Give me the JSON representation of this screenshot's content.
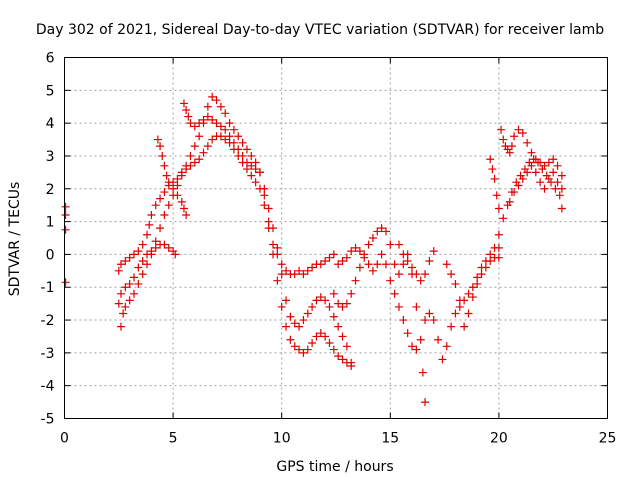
{
  "chart_data": {
    "type": "scatter",
    "title": "Day 302 of 2021, Sidereal Day-to-day VTEC variation (SDTVAR) for receiver lamb",
    "xlabel": "GPS time / hours",
    "ylabel": "SDTVAR / TECUs",
    "xlim": [
      0,
      25
    ],
    "ylim": [
      -5,
      6
    ],
    "xticks": [
      "0",
      "5",
      "10",
      "15",
      "20",
      "25"
    ],
    "yticks": [
      "-5",
      "-4",
      "-3",
      "-2",
      "-1",
      "0",
      "1",
      "2",
      "3",
      "4",
      "5",
      "6"
    ],
    "grid": true,
    "marker": "plus",
    "color": "#e00000",
    "series": [
      {
        "points": [
          [
            0.05,
            1.45
          ],
          [
            0.05,
            1.2
          ],
          [
            0.05,
            0.75
          ],
          [
            0.05,
            -0.85
          ],
          [
            2.5,
            -0.5
          ],
          [
            2.6,
            -0.3
          ],
          [
            2.8,
            -0.2
          ],
          [
            3.0,
            -0.1
          ],
          [
            3.2,
            0.0
          ],
          [
            3.4,
            0.1
          ],
          [
            3.6,
            0.3
          ],
          [
            3.8,
            0.6
          ],
          [
            3.9,
            0.9
          ],
          [
            4.0,
            1.2
          ],
          [
            4.2,
            1.5
          ],
          [
            4.4,
            1.7
          ],
          [
            4.6,
            1.9
          ],
          [
            4.8,
            2.1
          ],
          [
            5.0,
            2.2
          ],
          [
            5.2,
            2.3
          ],
          [
            5.4,
            2.5
          ],
          [
            5.6,
            2.6
          ],
          [
            5.8,
            2.7
          ],
          [
            6.0,
            2.8
          ],
          [
            6.2,
            2.9
          ],
          [
            6.4,
            3.1
          ],
          [
            6.6,
            3.3
          ],
          [
            6.8,
            3.5
          ],
          [
            7.0,
            3.6
          ],
          [
            7.2,
            3.6
          ],
          [
            7.4,
            3.5
          ],
          [
            7.6,
            3.4
          ],
          [
            7.8,
            3.2
          ],
          [
            8.0,
            3.0
          ],
          [
            8.2,
            2.8
          ],
          [
            8.4,
            2.6
          ],
          [
            8.6,
            2.4
          ],
          [
            8.8,
            2.2
          ],
          [
            9.0,
            2.0
          ],
          [
            9.2,
            1.5
          ],
          [
            9.4,
            0.8
          ],
          [
            9.6,
            0.0
          ],
          [
            9.8,
            -0.8
          ],
          [
            10.0,
            -1.6
          ],
          [
            10.2,
            -2.2
          ],
          [
            10.4,
            -2.6
          ],
          [
            10.6,
            -2.8
          ],
          [
            10.8,
            -2.9
          ],
          [
            11.0,
            -3.0
          ],
          [
            11.2,
            -2.9
          ],
          [
            11.4,
            -2.7
          ],
          [
            11.6,
            -2.5
          ],
          [
            11.8,
            -2.4
          ],
          [
            12.0,
            -2.5
          ],
          [
            12.2,
            -2.7
          ],
          [
            12.4,
            -2.9
          ],
          [
            12.6,
            -3.1
          ],
          [
            12.8,
            -3.2
          ],
          [
            13.0,
            -3.3
          ],
          [
            13.2,
            -3.4
          ]
        ]
      },
      {
        "points": [
          [
            2.5,
            -1.5
          ],
          [
            2.6,
            -1.2
          ],
          [
            2.8,
            -1.0
          ],
          [
            3.0,
            -0.9
          ],
          [
            3.2,
            -0.7
          ],
          [
            3.4,
            -0.4
          ],
          [
            3.6,
            -0.2
          ],
          [
            3.8,
            0.0
          ],
          [
            4.0,
            0.1
          ],
          [
            4.2,
            0.2
          ],
          [
            4.4,
            0.3
          ],
          [
            4.6,
            0.3
          ],
          [
            4.8,
            0.2
          ],
          [
            5.0,
            0.1
          ],
          [
            5.1,
            0.0
          ],
          [
            4.3,
            3.5
          ],
          [
            4.4,
            3.3
          ],
          [
            4.5,
            3.0
          ],
          [
            4.6,
            2.7
          ],
          [
            4.7,
            2.4
          ],
          [
            4.8,
            2.2
          ],
          [
            5.0,
            2.0
          ],
          [
            5.2,
            1.8
          ],
          [
            5.4,
            1.6
          ],
          [
            5.5,
            1.4
          ],
          [
            5.6,
            1.2
          ],
          [
            5.5,
            4.6
          ],
          [
            5.6,
            4.4
          ],
          [
            5.7,
            4.2
          ],
          [
            5.8,
            4.0
          ],
          [
            6.0,
            3.9
          ],
          [
            6.2,
            4.0
          ],
          [
            6.4,
            4.1
          ],
          [
            6.6,
            4.2
          ],
          [
            6.8,
            4.1
          ],
          [
            7.0,
            4.0
          ],
          [
            7.2,
            3.9
          ],
          [
            7.4,
            3.8
          ],
          [
            7.6,
            3.6
          ],
          [
            7.8,
            3.4
          ],
          [
            8.0,
            3.2
          ],
          [
            8.2,
            3.0
          ],
          [
            8.4,
            2.8
          ],
          [
            8.6,
            2.7
          ],
          [
            8.8,
            2.6
          ],
          [
            9.0,
            2.5
          ],
          [
            9.2,
            1.8
          ],
          [
            9.4,
            1.0
          ],
          [
            9.6,
            0.3
          ],
          [
            9.8,
            0.0
          ],
          [
            10.0,
            -0.3
          ],
          [
            10.2,
            -0.5
          ],
          [
            10.4,
            -0.6
          ],
          [
            10.6,
            -0.6
          ],
          [
            10.8,
            -0.5
          ],
          [
            11.0,
            -0.6
          ],
          [
            11.2,
            -0.5
          ],
          [
            11.4,
            -0.4
          ],
          [
            11.6,
            -0.3
          ],
          [
            11.8,
            -0.3
          ],
          [
            12.0,
            -0.2
          ],
          [
            12.2,
            -0.1
          ],
          [
            12.4,
            0.0
          ]
        ]
      },
      {
        "points": [
          [
            2.6,
            -2.2
          ],
          [
            2.7,
            -1.8
          ],
          [
            2.8,
            -1.6
          ],
          [
            3.0,
            -1.4
          ],
          [
            3.2,
            -1.2
          ],
          [
            3.4,
            -0.9
          ],
          [
            3.6,
            -0.6
          ],
          [
            3.8,
            -0.3
          ],
          [
            4.0,
            0.0
          ],
          [
            4.2,
            0.4
          ],
          [
            4.4,
            0.8
          ],
          [
            4.6,
            1.2
          ],
          [
            4.8,
            1.5
          ],
          [
            5.0,
            1.8
          ],
          [
            5.2,
            2.1
          ],
          [
            5.4,
            2.4
          ],
          [
            5.6,
            2.7
          ],
          [
            5.8,
            3.0
          ],
          [
            6.0,
            3.3
          ],
          [
            6.2,
            3.6
          ],
          [
            6.4,
            4.0
          ],
          [
            6.6,
            4.5
          ],
          [
            6.8,
            4.8
          ],
          [
            7.0,
            4.7
          ],
          [
            7.2,
            4.5
          ],
          [
            7.4,
            4.3
          ],
          [
            7.6,
            4.0
          ],
          [
            7.8,
            3.8
          ],
          [
            8.0,
            3.6
          ],
          [
            8.2,
            3.4
          ],
          [
            8.4,
            3.2
          ],
          [
            8.6,
            3.0
          ],
          [
            8.8,
            2.8
          ],
          [
            9.0,
            2.5
          ],
          [
            9.2,
            2.0
          ],
          [
            9.4,
            1.4
          ],
          [
            9.6,
            0.8
          ],
          [
            9.8,
            0.2
          ],
          [
            10.0,
            -0.6
          ],
          [
            10.2,
            -1.4
          ],
          [
            10.4,
            -1.9
          ],
          [
            10.6,
            -2.1
          ],
          [
            10.8,
            -2.2
          ],
          [
            11.0,
            -2.0
          ],
          [
            11.2,
            -1.8
          ],
          [
            11.4,
            -1.6
          ],
          [
            11.6,
            -1.4
          ],
          [
            11.8,
            -1.3
          ],
          [
            12.0,
            -1.4
          ],
          [
            12.2,
            -1.6
          ],
          [
            12.4,
            -1.9
          ],
          [
            12.6,
            -2.2
          ],
          [
            12.8,
            -2.5
          ],
          [
            13.0,
            -2.8
          ],
          [
            13.2,
            -3.3
          ]
        ]
      },
      {
        "points": [
          [
            12.4,
            -1.2
          ],
          [
            12.6,
            -1.5
          ],
          [
            12.8,
            -1.6
          ],
          [
            13.0,
            -1.5
          ],
          [
            13.2,
            -1.2
          ],
          [
            13.4,
            -0.8
          ],
          [
            13.6,
            -0.4
          ],
          [
            13.8,
            0.0
          ],
          [
            14.0,
            0.3
          ],
          [
            14.2,
            0.5
          ],
          [
            14.4,
            0.7
          ],
          [
            14.6,
            0.8
          ],
          [
            14.8,
            0.7
          ],
          [
            15.0,
            0.3
          ],
          [
            15.2,
            -0.3
          ],
          [
            15.4,
            -0.6
          ],
          [
            15.6,
            -0.3
          ],
          [
            15.8,
            0.0
          ],
          [
            16.0,
            -0.6
          ],
          [
            16.2,
            -1.6
          ],
          [
            16.4,
            -2.6
          ],
          [
            16.5,
            -3.6
          ],
          [
            16.6,
            -4.5
          ],
          [
            12.6,
            -0.3
          ],
          [
            12.8,
            -0.2
          ],
          [
            13.0,
            -0.1
          ],
          [
            13.2,
            0.1
          ],
          [
            13.4,
            0.2
          ],
          [
            13.6,
            0.1
          ],
          [
            13.8,
            -0.1
          ],
          [
            14.0,
            -0.3
          ],
          [
            14.2,
            -0.5
          ],
          [
            14.4,
            -0.3
          ],
          [
            14.6,
            0.0
          ],
          [
            14.8,
            -0.3
          ],
          [
            15.0,
            -0.8
          ],
          [
            15.2,
            -1.2
          ],
          [
            15.4,
            -1.6
          ],
          [
            15.6,
            -2.0
          ],
          [
            15.8,
            -2.4
          ],
          [
            16.0,
            -2.8
          ],
          [
            16.2,
            -2.9
          ],
          [
            15.4,
            0.3
          ],
          [
            15.6,
            0.0
          ],
          [
            15.8,
            -0.2
          ],
          [
            16.0,
            -0.4
          ],
          [
            16.2,
            -0.6
          ],
          [
            16.4,
            -0.8
          ],
          [
            16.6,
            -0.6
          ],
          [
            16.8,
            -0.2
          ],
          [
            17.0,
            0.1
          ],
          [
            16.6,
            -2.0
          ],
          [
            16.8,
            -1.8
          ],
          [
            17.0,
            -2.0
          ],
          [
            17.2,
            -2.6
          ],
          [
            17.4,
            -3.2
          ],
          [
            17.6,
            -2.8
          ],
          [
            17.8,
            -2.2
          ],
          [
            18.0,
            -1.8
          ],
          [
            18.2,
            -1.6
          ],
          [
            18.4,
            -1.4
          ],
          [
            18.6,
            -1.2
          ],
          [
            18.8,
            -1.0
          ],
          [
            19.0,
            -0.7
          ],
          [
            19.2,
            -0.4
          ],
          [
            19.4,
            -0.2
          ],
          [
            19.6,
            0.0
          ],
          [
            19.8,
            0.2
          ],
          [
            17.6,
            -0.3
          ],
          [
            17.8,
            -0.6
          ],
          [
            18.0,
            -0.9
          ],
          [
            18.2,
            -1.4
          ],
          [
            18.4,
            -2.2
          ],
          [
            18.6,
            -1.8
          ],
          [
            18.8,
            -1.3
          ],
          [
            19.0,
            -0.9
          ],
          [
            19.2,
            -0.6
          ],
          [
            19.4,
            -0.4
          ],
          [
            19.6,
            -0.2
          ],
          [
            19.8,
            -0.1
          ],
          [
            20.0,
            -0.1
          ]
        ]
      },
      {
        "points": [
          [
            19.6,
            2.9
          ],
          [
            19.7,
            2.6
          ],
          [
            19.8,
            2.3
          ],
          [
            19.9,
            1.8
          ],
          [
            20.0,
            1.4
          ],
          [
            20.0,
            0.6
          ],
          [
            20.0,
            0.2
          ],
          [
            20.2,
            1.1
          ],
          [
            20.4,
            1.5
          ],
          [
            20.6,
            1.9
          ],
          [
            20.8,
            2.2
          ],
          [
            21.0,
            2.4
          ],
          [
            21.2,
            2.6
          ],
          [
            21.4,
            2.8
          ],
          [
            21.6,
            2.9
          ],
          [
            21.8,
            2.8
          ],
          [
            22.0,
            2.6
          ],
          [
            22.2,
            2.4
          ],
          [
            22.4,
            2.2
          ],
          [
            22.6,
            2.0
          ],
          [
            22.8,
            1.8
          ],
          [
            22.9,
            1.4
          ],
          [
            20.1,
            3.8
          ],
          [
            20.2,
            3.5
          ],
          [
            20.3,
            3.3
          ],
          [
            20.4,
            3.2
          ],
          [
            20.5,
            3.1
          ],
          [
            20.6,
            3.3
          ],
          [
            20.7,
            3.6
          ],
          [
            20.9,
            3.8
          ],
          [
            21.1,
            3.7
          ],
          [
            21.3,
            3.4
          ],
          [
            21.5,
            3.1
          ],
          [
            21.7,
            2.9
          ],
          [
            21.9,
            2.8
          ],
          [
            22.1,
            2.7
          ],
          [
            22.3,
            2.8
          ],
          [
            22.5,
            2.9
          ],
          [
            22.7,
            2.7
          ],
          [
            22.9,
            2.4
          ],
          [
            20.5,
            1.6
          ],
          [
            20.7,
            1.9
          ],
          [
            20.9,
            2.1
          ],
          [
            21.1,
            2.3
          ],
          [
            21.3,
            2.5
          ],
          [
            21.5,
            2.7
          ],
          [
            21.7,
            2.5
          ],
          [
            21.9,
            2.2
          ],
          [
            22.1,
            2.0
          ],
          [
            22.3,
            2.3
          ],
          [
            22.5,
            2.5
          ],
          [
            22.7,
            2.2
          ],
          [
            22.9,
            2.0
          ]
        ]
      }
    ]
  }
}
